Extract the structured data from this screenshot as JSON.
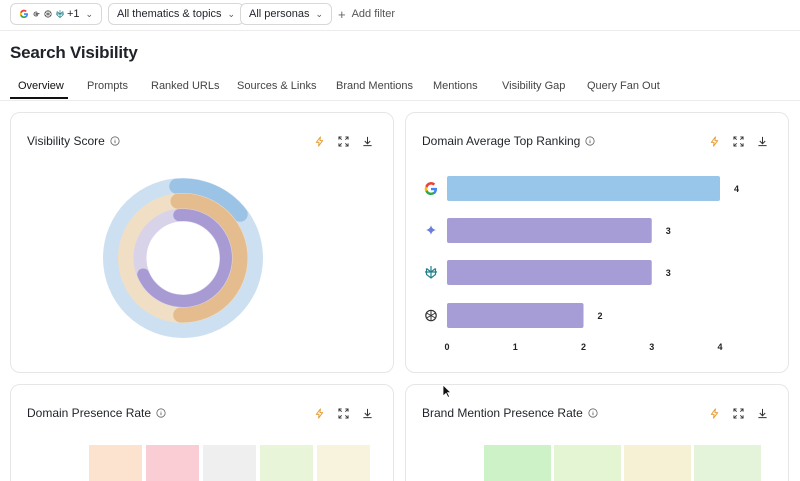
{
  "filters": {
    "engines_extra": "+1",
    "thematics": "All thematics & topics",
    "personas": "All personas",
    "add_filter": "Add filter"
  },
  "page_title": "Search Visibility",
  "tabs": [
    "Overview",
    "Prompts",
    "Ranked URLs",
    "Sources & Links",
    "Brand Mentions",
    "Mentions",
    "Visibility Gap",
    "Query Fan Out"
  ],
  "cards": {
    "visibility_score": {
      "title": "Visibility Score",
      "rings": [
        {
          "track": "#cde0f1",
          "fill": "#9ac3e6",
          "value": 0.16
        },
        {
          "track": "#f0dfc4",
          "fill": "#e4bc8d",
          "value": 0.52
        },
        {
          "track": "#d9d3ea",
          "fill": "#a89bd4",
          "value": 0.7
        }
      ]
    },
    "domain_ranking": {
      "title": "Domain Average Top Ranking",
      "chart_data": {
        "type": "bar",
        "orientation": "horizontal",
        "categories": [
          "Google",
          "Gemini",
          "Perplexity",
          "ChatGPT"
        ],
        "icons": [
          "google-icon",
          "gemini-icon",
          "perplexity-icon",
          "chatgpt-icon"
        ],
        "values": [
          4,
          3,
          3,
          2
        ],
        "colors": [
          "#98c6ea",
          "#a69dd6",
          "#a69dd6",
          "#a69dd6"
        ],
        "xticks": [
          "0",
          "1",
          "2",
          "3",
          "4"
        ],
        "xlim": [
          0,
          4
        ]
      }
    },
    "domain_presence": {
      "title": "Domain Presence Rate",
      "cells": [
        "#fbe3cf",
        "#f9cdd3",
        "#efefef",
        "#e9f5d9",
        "#f7f3dc"
      ]
    },
    "brand_presence": {
      "title": "Brand Mention Presence Rate",
      "cells": [
        "#cdf2c8",
        "#e3f5d3",
        "#f6f0d5",
        "#e3f4da"
      ]
    }
  }
}
